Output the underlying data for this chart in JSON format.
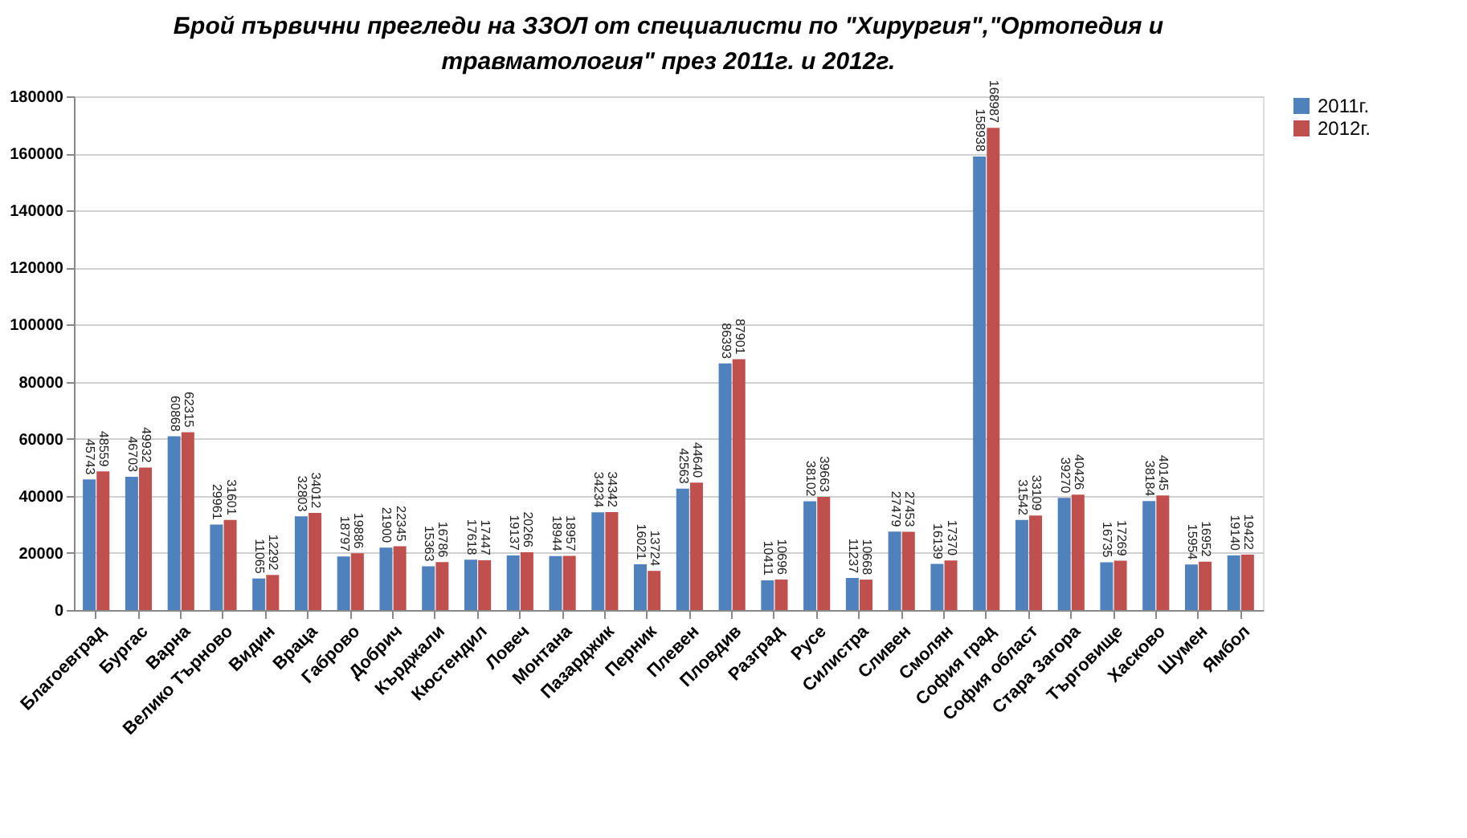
{
  "chart_data": {
    "type": "bar",
    "title": "Брой първични прегледи на ЗЗОЛ от специалисти по \"Хирургия\",\"Ортопедия и травматология\" през 2011г. и 2012г.",
    "categories": [
      "Благоевград",
      "Бургас",
      "Варна",
      "Велико Търново",
      "Видин",
      "Враца",
      "Габрово",
      "Добрич",
      "Кърджали",
      "Кюстендил",
      "Ловеч",
      "Монтана",
      "Пазарджик",
      "Перник",
      "Плевен",
      "Пловдив",
      "Разград",
      "Русе",
      "Силистра",
      "Сливен",
      "Смолян",
      "София град",
      "София област",
      "Стара Загора",
      "Търговище",
      "Хасково",
      "Шумен",
      "Ямбол"
    ],
    "series": [
      {
        "name": "2011г.",
        "color": "#4f81bd",
        "values": [
          45743,
          46703,
          60868,
          29961,
          11065,
          32803,
          18797,
          21900,
          15363,
          17618,
          19137,
          18944,
          34234,
          16021,
          42563,
          86393,
          10411,
          38102,
          11237,
          27479,
          16139,
          158938,
          31542,
          39270,
          16735,
          38184,
          15954,
          19140
        ]
      },
      {
        "name": "2012г.",
        "color": "#c0504d",
        "values": [
          48559,
          49932,
          62315,
          31601,
          12292,
          34012,
          19886,
          22345,
          16786,
          17447,
          20266,
          18957,
          34342,
          13724,
          44640,
          87901,
          10696,
          39663,
          10668,
          27453,
          17370,
          168987,
          33109,
          40426,
          17269,
          40145,
          16952,
          19422
        ]
      }
    ],
    "ylim": [
      0,
      180000
    ],
    "yticks": [
      0,
      20000,
      40000,
      60000,
      80000,
      100000,
      120000,
      140000,
      160000,
      180000
    ],
    "grid": "y",
    "legend": "right",
    "data_labels": true
  }
}
